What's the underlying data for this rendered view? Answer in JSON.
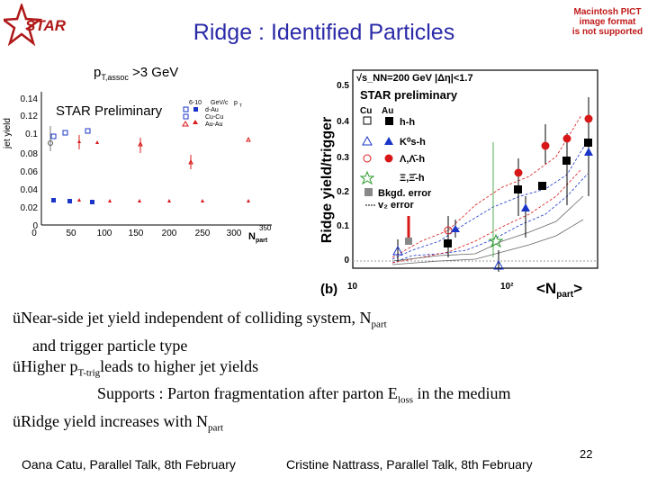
{
  "title": "Ridge : Identified Particles",
  "logo_text": "STAR",
  "mac_notice": [
    "Macintosh PICT",
    "image format",
    "is not supported"
  ],
  "pt_label": {
    "main": "p",
    "sub": "T,assoc",
    "rest": " >3 GeV"
  },
  "left_plot": {
    "preliminary": "STAR Preliminary",
    "ylabel": "jet yield",
    "yticks": [
      "0.14",
      "0.12",
      "0.1",
      "0.08",
      "0.06",
      "0.04",
      "0.02",
      "0"
    ],
    "xticks": [
      "0",
      "50",
      "100",
      "150",
      "200",
      "250",
      "300",
      "350"
    ],
    "xlabel_main": "N",
    "xlabel_sub": "part",
    "legend_cols": [
      "6-10",
      "Cu-Cu",
      "Au-Au"
    ],
    "legend_head": [
      "GeV/c",
      "d-Au",
      "p"
    ],
    "legend_head_sub": "T"
  },
  "right_plot": {
    "energy_label": "√s_NN=200 GeV  |Δη|<1.7",
    "preliminary": "STAR preliminary",
    "col_headers": [
      "Cu",
      "Au"
    ],
    "legend": [
      "h-h",
      "K⁰s-h",
      "Λ,Λ̄-h",
      "Ξ,Ξ̄-h",
      "Bkgd. error",
      "v₂ error"
    ],
    "ylabel": "Ridge yield/trigger",
    "yticks": [
      "0.5",
      "0.4",
      "0.3",
      "0.2",
      "0.1",
      "0"
    ],
    "xticks": [
      "10",
      "10²"
    ],
    "panel_label": "(b)",
    "xlabel": "<N",
    "xlabel_sub": "part",
    "xlabel_end": ">"
  },
  "bullets": [
    {
      "mark": "ü",
      "text": "Near-side jet yield independent of colliding system, N",
      "sub": "part"
    },
    {
      "text": "and trigger particle type"
    },
    {
      "mark": "ü",
      "text_a": "Higher p",
      "sub": "T-trig",
      "text_b": "leads to  higher jet yields"
    },
    {
      "text_a": "Supports : Parton fragmentation after parton E",
      "sub": "loss",
      "text_b": " in the medium"
    },
    {
      "mark": "ü",
      "text": "Ridge yield increases with N",
      "sub": "part"
    }
  ],
  "footer": {
    "left": "Oana Catu, Parallel Talk, 8th February",
    "right": "Cristine Nattrass, Parallel Talk, 8th February",
    "page": "22"
  },
  "colors": {
    "title": "#2a2aa8",
    "blue": "#1a35c8",
    "red": "#d81818",
    "green": "#2a9a2a"
  }
}
